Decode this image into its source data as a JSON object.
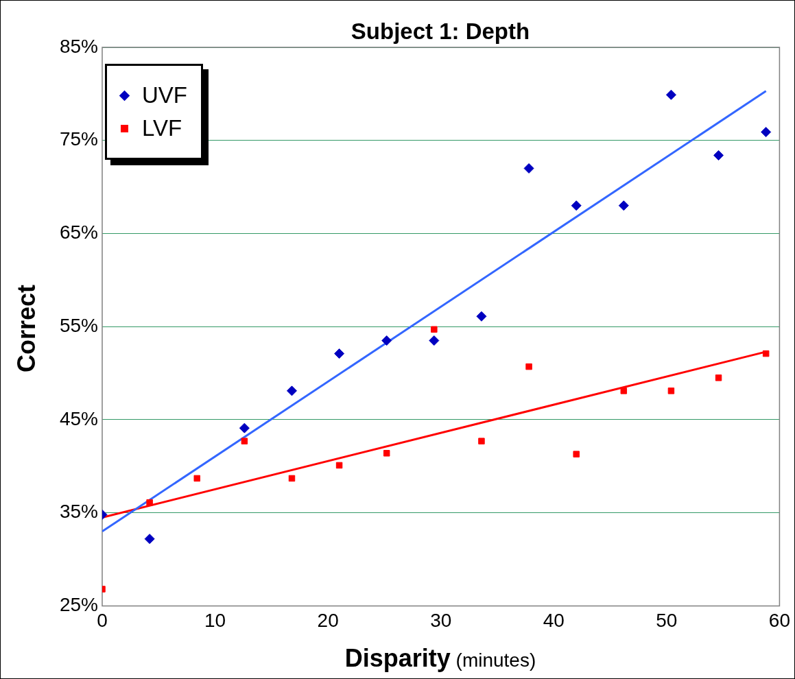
{
  "chart_data": {
    "type": "scatter",
    "title": "Subject 1: Depth",
    "xlabel": "Disparity (minutes)",
    "ylabel": "Correct",
    "xlim": [
      0,
      60
    ],
    "xticks": [
      0,
      10,
      20,
      30,
      40,
      50,
      60
    ],
    "ylim": [
      25,
      85
    ],
    "yticks": [
      {
        "value": 25,
        "label": "25%"
      },
      {
        "value": 35,
        "label": "35%"
      },
      {
        "value": 45,
        "label": "45%"
      },
      {
        "value": 55,
        "label": "55%"
      },
      {
        "value": 65,
        "label": "65%"
      },
      {
        "value": 75,
        "label": "75%"
      },
      {
        "value": 85,
        "label": "85%"
      }
    ],
    "grid": "y",
    "legend": "top left",
    "series": [
      {
        "name": "UVF",
        "color": "#0000c0",
        "marker": "diamond",
        "x": [
          0,
          4.2,
          12.6,
          16.8,
          21,
          25.2,
          29.4,
          33.6,
          37.8,
          42,
          46.2,
          50.4,
          54.6,
          58.8
        ],
        "values": [
          34.8,
          32.2,
          44.1,
          48.1,
          52.1,
          53.5,
          53.5,
          56.1,
          72.0,
          68.0,
          68.0,
          79.9,
          73.4,
          75.9
        ]
      },
      {
        "name": "LVF",
        "color": "#ff0000",
        "marker": "square",
        "x": [
          0,
          4.2,
          8.4,
          12.6,
          16.8,
          21,
          25.2,
          29.4,
          33.6,
          37.8,
          42,
          46.2,
          50.4,
          54.6,
          58.8
        ],
        "values": [
          26.8,
          36.1,
          38.7,
          42.7,
          38.7,
          40.1,
          41.4,
          54.7,
          42.7,
          50.7,
          41.3,
          48.1,
          48.1,
          49.5,
          52.1
        ]
      },
      {
        "type": "line",
        "color": "#3366ff",
        "marker": "none",
        "x": [
          0,
          58.8
        ],
        "values": [
          33.0,
          80.3
        ]
      },
      {
        "type": "line",
        "color": "#ff0000",
        "marker": "none",
        "x": [
          0,
          58.8
        ],
        "values": [
          34.5,
          52.3
        ]
      }
    ]
  }
}
